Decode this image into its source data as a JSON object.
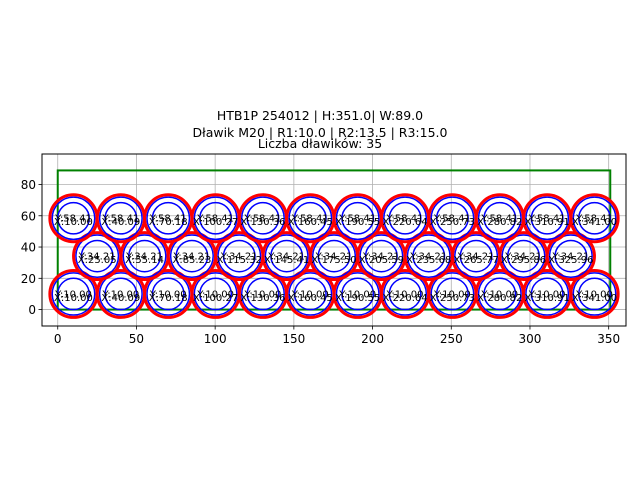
{
  "chart_data": {
    "type": "scatter",
    "title_lines": [
      "HTB1P 254012 | H:351.0| W:89.0",
      "Dławik M20 | R1:10.0 | R2:13.5 | R3:15.0",
      "Liczba dławików: 35"
    ],
    "xlabel": "",
    "ylabel": "",
    "xlim": [
      -10,
      361
    ],
    "ylim": [
      -10.5,
      99.5
    ],
    "xticks": [
      0,
      50,
      100,
      150,
      200,
      250,
      300,
      350
    ],
    "yticks": [
      0,
      20,
      40,
      60,
      80
    ],
    "grid": true,
    "legend": null,
    "box": {
      "x": 0,
      "y": 0,
      "width": 351.0,
      "height": 89.0,
      "color": "#008000"
    },
    "radii": {
      "R1": 10.0,
      "R2": 13.5,
      "R3": 15.0
    },
    "ring_colors": {
      "R1": "#0000ff",
      "R2": "#0000ff",
      "R3": "#ff0000"
    },
    "count": 35,
    "points": [
      {
        "x": 10.0,
        "y": 10.0
      },
      {
        "x": 40.09,
        "y": 10.0
      },
      {
        "x": 70.18,
        "y": 10.0
      },
      {
        "x": 100.27,
        "y": 10.0
      },
      {
        "x": 130.36,
        "y": 10.0
      },
      {
        "x": 160.45,
        "y": 10.0
      },
      {
        "x": 190.55,
        "y": 10.0
      },
      {
        "x": 220.64,
        "y": 10.0
      },
      {
        "x": 250.73,
        "y": 10.0
      },
      {
        "x": 280.82,
        "y": 10.0
      },
      {
        "x": 310.91,
        "y": 10.0
      },
      {
        "x": 341.0,
        "y": 10.0
      },
      {
        "x": 25.05,
        "y": 34.21
      },
      {
        "x": 55.14,
        "y": 34.21
      },
      {
        "x": 85.23,
        "y": 34.21
      },
      {
        "x": 115.32,
        "y": 34.21
      },
      {
        "x": 145.41,
        "y": 34.21
      },
      {
        "x": 175.5,
        "y": 34.21
      },
      {
        "x": 205.59,
        "y": 34.21
      },
      {
        "x": 235.68,
        "y": 34.21
      },
      {
        "x": 265.77,
        "y": 34.21
      },
      {
        "x": 295.86,
        "y": 34.21
      },
      {
        "x": 325.96,
        "y": 34.21
      },
      {
        "x": 10.0,
        "y": 58.41
      },
      {
        "x": 40.09,
        "y": 58.41
      },
      {
        "x": 70.18,
        "y": 58.41
      },
      {
        "x": 100.27,
        "y": 58.41
      },
      {
        "x": 130.36,
        "y": 58.41
      },
      {
        "x": 160.45,
        "y": 58.41
      },
      {
        "x": 190.55,
        "y": 58.41
      },
      {
        "x": 220.64,
        "y": 58.41
      },
      {
        "x": 250.73,
        "y": 58.41
      },
      {
        "x": 280.82,
        "y": 58.41
      },
      {
        "x": 310.91,
        "y": 58.41
      },
      {
        "x": 341.0,
        "y": 58.41
      }
    ]
  }
}
